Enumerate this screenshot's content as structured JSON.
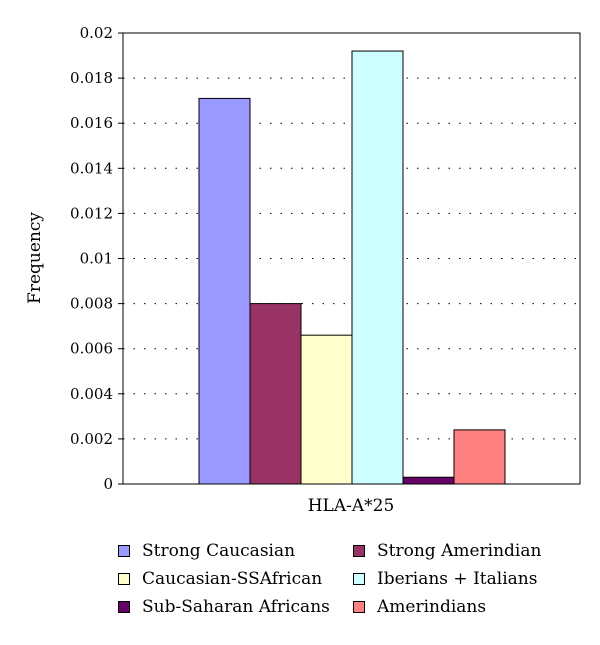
{
  "chart_data": {
    "type": "bar",
    "categories": [
      "HLA-A*25"
    ],
    "ylabel": "Frequency",
    "xlabel": "",
    "ylim": [
      0,
      0.02
    ],
    "yticks": [
      "0",
      "0.002",
      "0.004",
      "0.006",
      "0.008",
      "0.01",
      "0.012",
      "0.014",
      "0.016",
      "0.018",
      "0.02"
    ],
    "grid": true,
    "legend_position": "bottom",
    "series": [
      {
        "name": "Strong Caucasian",
        "values": [
          0.0171
        ],
        "color": "#9999ff"
      },
      {
        "name": "Strong Amerindian",
        "values": [
          0.008
        ],
        "color": "#993366"
      },
      {
        "name": "Caucasian-SSAfrican",
        "values": [
          0.0066
        ],
        "color": "#ffffcc"
      },
      {
        "name": "Iberians + Italians",
        "values": [
          0.0192
        ],
        "color": "#ccffff"
      },
      {
        "name": "Sub-Saharan Africans",
        "values": [
          0.0003
        ],
        "color": "#660066"
      },
      {
        "name": "Amerindians",
        "values": [
          0.0024
        ],
        "color": "#ff8080"
      }
    ],
    "legend_order": [
      0,
      1,
      2,
      3,
      4,
      5
    ]
  }
}
